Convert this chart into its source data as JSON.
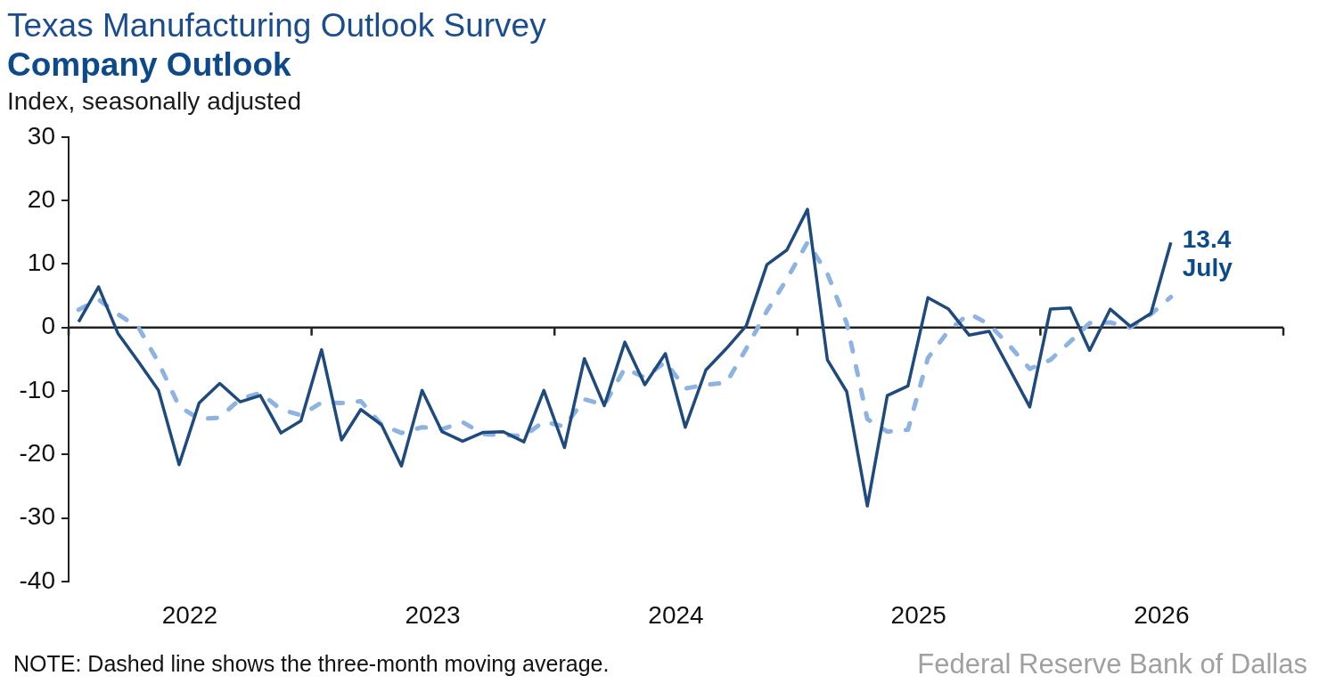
{
  "chart_data": {
    "type": "line",
    "title": "Texas Manufacturing Outlook Survey",
    "subtitle": "Company Outlook",
    "ylabel": "Index, seasonally adjusted",
    "x": [
      "2022-01-16",
      "2022-02-15",
      "2022-03-16",
      "2022-04-16",
      "2022-05-16",
      "2022-06-16",
      "2022-07-16",
      "2022-08-16",
      "2022-09-16",
      "2022-10-16",
      "2022-11-16",
      "2022-12-16",
      "2023-01-16",
      "2023-02-15",
      "2023-03-16",
      "2023-04-16",
      "2023-05-16",
      "2023-06-16",
      "2023-07-16",
      "2023-08-16",
      "2023-09-16",
      "2023-10-16",
      "2023-11-16",
      "2023-12-16",
      "2024-01-16",
      "2024-02-15",
      "2024-03-16",
      "2024-04-16",
      "2024-05-16",
      "2024-06-16",
      "2024-07-16",
      "2024-08-16",
      "2024-09-16",
      "2024-10-16",
      "2024-11-16",
      "2024-12-16",
      "2025-01-16",
      "2025-02-15",
      "2025-03-16",
      "2025-04-16",
      "2025-05-16",
      "2025-06-16",
      "2025-07-16",
      "2025-08-16",
      "2025-09-16",
      "2025-10-16",
      "2025-11-16",
      "2025-12-16",
      "2026-01-16",
      "2026-02-15",
      "2026-03-16",
      "2026-04-16",
      "2026-05-16",
      "2026-06-16",
      "2026-07-16"
    ],
    "series": [
      {
        "color": "#1f4a7e",
        "line_style": "solid",
        "values": [
          0.9,
          6.4,
          -0.9,
          -5.4,
          -9.9,
          -21.6,
          -11.9,
          -8.8,
          -11.7,
          -10.7,
          -16.6,
          -14.7,
          -3.5,
          -17.7,
          -12.9,
          -15.3,
          -21.8,
          -9.9,
          -16.4,
          -17.9,
          -16.5,
          -16.4,
          -18.0,
          -9.9,
          -18.9,
          -4.9,
          -12.3,
          -2.3,
          -9.0,
          -4.1,
          -15.7,
          -6.7,
          -3.3,
          0.3,
          9.9,
          12.2,
          18.6,
          -5.1,
          -10.1,
          -28.1,
          -10.7,
          -9.2,
          4.7,
          2.9,
          -1.2,
          -0.6,
          -6.6,
          -12.5,
          2.9,
          3.1,
          -3.6,
          2.9,
          0.2,
          2.2,
          13.4
        ],
        "value_labels": [
          null,
          null,
          null,
          null,
          null,
          null,
          null,
          null,
          null,
          null,
          null,
          null,
          null,
          null,
          null,
          null,
          null,
          null,
          null,
          null,
          null,
          null,
          null,
          null,
          null,
          null,
          null,
          null,
          null,
          null,
          null,
          null,
          null,
          null,
          null,
          null,
          null,
          null,
          null,
          null,
          null,
          null,
          null,
          null,
          null,
          null,
          null,
          null,
          null,
          null,
          null,
          null,
          null,
          null,
          "13.4"
        ]
      },
      {
        "color": "#8db3e2",
        "line_style": "dashed",
        "values": [
          2.8,
          4.4,
          2.1,
          0,
          -5.5,
          -12.4,
          -14.4,
          -14.2,
          -11.2,
          -10.3,
          -12.9,
          -13.8,
          -11.8,
          -11.9,
          -11.6,
          -15.3,
          -16.6,
          -15.7,
          -16.0,
          -14.9,
          -16.8,
          -16.9,
          -17.1,
          -14.8,
          -15.6,
          -11.3,
          -12.2,
          -6.4,
          -7.9,
          -5.4,
          -9.6,
          -9.0,
          -8.7,
          -3.3,
          2.6,
          7.6,
          13.4,
          8.5,
          0.7,
          -14.4,
          -16.4,
          -16.1,
          -4.8,
          -0.5,
          2.2,
          0.5,
          -2.9,
          -6.5,
          -5.1,
          -2.2,
          0.7,
          0.8,
          0,
          2.1,
          4.8
        ]
      }
    ],
    "xlim": [
      "2022",
      "2027"
    ],
    "xticks": [
      {
        "value": "2022",
        "label": null
      },
      {
        "value": "2022-07-02",
        "label": "2022"
      },
      {
        "value": "2023",
        "label": null
      },
      {
        "value": "2023-07-02",
        "label": "2023"
      },
      {
        "value": "2024",
        "label": null
      },
      {
        "value": "2024-07-02",
        "label": "2024"
      },
      {
        "value": "2025",
        "label": null
      },
      {
        "value": "2025-07-02",
        "label": "2025"
      },
      {
        "value": "2026",
        "label": null
      },
      {
        "value": "2026-07-02",
        "label": "2026"
      },
      {
        "value": "2027",
        "label": null
      }
    ],
    "ylim": [
      -40,
      30
    ],
    "yticks": [
      -40,
      -30,
      -20,
      -10,
      0,
      10,
      20,
      30
    ],
    "ref_lines": [
      {
        "axis": "y",
        "value": 0
      }
    ],
    "grid": false,
    "legend": false,
    "annotations": [
      "NOTE: Dashed line shows the three-month moving average.",
      "Federal Reserve Bank of Dallas",
      {
        "text": "July",
        "x": "2026-07-16",
        "y": 13.4
      }
    ]
  }
}
